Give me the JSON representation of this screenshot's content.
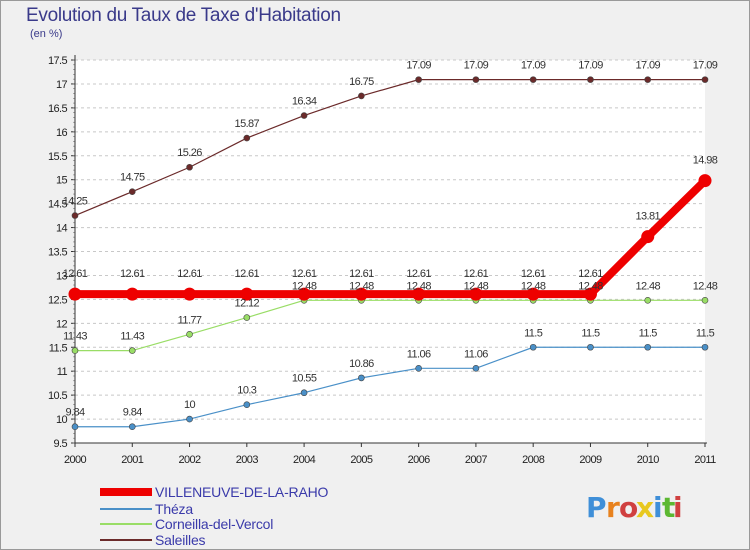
{
  "chart_data": {
    "type": "line",
    "title": "Evolution du Taux de Taxe d'Habitation",
    "subtitle": "(en %)",
    "xlabel": "",
    "ylabel": "",
    "categories": [
      "2000",
      "2001",
      "2002",
      "2003",
      "2004",
      "2005",
      "2006",
      "2007",
      "2008",
      "2009",
      "2010",
      "2011"
    ],
    "ylim": [
      9.5,
      17.5
    ],
    "yticks": [
      "9.5",
      "10",
      "10.5",
      "11",
      "11.5",
      "12",
      "12.5",
      "13",
      "13.5",
      "14",
      "14.5",
      "15",
      "15.5",
      "16",
      "16.5",
      "17",
      "17.5"
    ],
    "grid": "horizontal-dashed",
    "legend_position": "bottom-left",
    "series": [
      {
        "name": "VILLENEUVE-DE-LA-RAHO",
        "color": "#ee0000",
        "emphasis": true,
        "values": [
          12.61,
          12.61,
          12.61,
          12.61,
          12.61,
          12.61,
          12.61,
          12.61,
          12.61,
          12.61,
          13.81,
          14.98
        ],
        "labels": [
          "12.61",
          "12.61",
          "12.61",
          "12.61",
          "12.61",
          "12.61",
          "12.61",
          "12.61",
          "12.61",
          "12.61",
          "13.81",
          "14.98"
        ]
      },
      {
        "name": "Théza",
        "color": "#4a90c8",
        "emphasis": false,
        "values": [
          9.84,
          9.84,
          10,
          10.3,
          10.55,
          10.86,
          11.06,
          11.06,
          11.5,
          11.5,
          11.5,
          11.5
        ],
        "labels": [
          "9.84",
          "9.84",
          "10",
          "10.3",
          "10.55",
          "10.86",
          "11.06",
          "11.06",
          "11.5",
          "11.5",
          "11.5",
          "11.5"
        ]
      },
      {
        "name": "Corneilla-del-Vercol",
        "color": "#99dd66",
        "emphasis": false,
        "values": [
          11.43,
          11.43,
          11.77,
          12.12,
          12.48,
          12.48,
          12.48,
          12.48,
          12.48,
          12.48,
          12.48,
          12.48
        ],
        "labels": [
          "11.43",
          "11.43",
          "11.77",
          "12.12",
          "12.48",
          "12.48",
          "12.48",
          "12.48",
          "12.48",
          "12.48",
          "12.48",
          "12.48"
        ]
      },
      {
        "name": "Saleilles",
        "color": "#6b2a2a",
        "emphasis": false,
        "values": [
          14.25,
          14.75,
          15.26,
          15.87,
          16.34,
          16.75,
          17.09,
          17.09,
          17.09,
          17.09,
          17.09,
          17.09
        ],
        "labels": [
          "14.25",
          "14.75",
          "15.26",
          "15.87",
          "16.34",
          "16.75",
          "17.09",
          "17.09",
          "17.09",
          "17.09",
          "17.09",
          "17.09"
        ]
      }
    ]
  },
  "logo": {
    "letters": [
      "P",
      "r",
      "o",
      "x",
      "i",
      "t",
      "i"
    ],
    "colors": [
      "#3f8fd8",
      "#e8821e",
      "#d04040",
      "#e8c81e",
      "#3f8fd8",
      "#5cb832",
      "#d04040"
    ]
  }
}
